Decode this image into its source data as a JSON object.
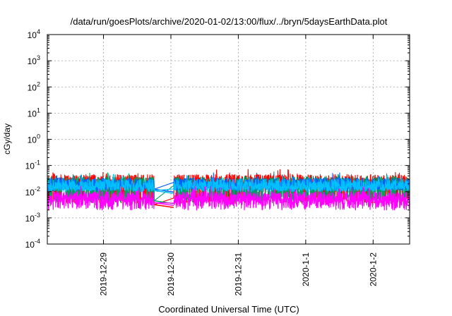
{
  "chart_data": {
    "type": "line",
    "title": "/data/run/goesPlots/archive/2020-01-02/13:00/flux/../bryn/5daysEarthData.plot",
    "xlabel": "Coordinated Universal Time (UTC)",
    "ylabel": "cGy/day",
    "y_scale": "log",
    "ylim": [
      0.0001,
      10000
    ],
    "y_ticks": [
      {
        "base": "10",
        "exp": "-4"
      },
      {
        "base": "10",
        "exp": "-3"
      },
      {
        "base": "10",
        "exp": "-2"
      },
      {
        "base": "10",
        "exp": "-1"
      },
      {
        "base": "10",
        "exp": "0"
      },
      {
        "base": "10",
        "exp": "1"
      },
      {
        "base": "10",
        "exp": "2"
      },
      {
        "base": "10",
        "exp": "3"
      },
      {
        "base": "10",
        "exp": "4"
      }
    ],
    "xlim": [
      "2019-12-28T04:00",
      "2020-01-02T13:00"
    ],
    "x_ticks": [
      "2019-12-29",
      "2019-12-30",
      "2019-12-31",
      "2020-1-1",
      "2020-1-2"
    ],
    "grid": true,
    "legend": "none",
    "series": [
      {
        "color": "#ff0000",
        "typical": 0.027,
        "low": 0.0045,
        "gap_level": 0.0032
      },
      {
        "color": "#00a060",
        "typical": 0.022,
        "low": 0.005,
        "gap_level": 0.0045
      },
      {
        "color": "#0060ff",
        "typical": 0.02,
        "low": 0.013,
        "gap_level": 0.0125
      },
      {
        "color": "#00c0ff",
        "typical": 0.018,
        "low": 0.012,
        "gap_level": 0.011
      },
      {
        "color": "#ff00ff",
        "typical": 0.006,
        "low": 0.0025,
        "gap_level": 0.0038
      }
    ],
    "data_gap": [
      "2019-12-29T18:00",
      "2019-12-30T01:00"
    ]
  }
}
